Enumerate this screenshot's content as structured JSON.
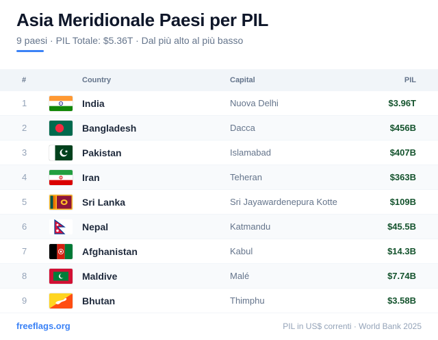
{
  "header": {
    "title": "Asia Meridionale Paesi per PIL",
    "subtitle": "9 paesi · PIL Totale: $5.36T · Dal più alto al più basso"
  },
  "table": {
    "columns": {
      "rank": "#",
      "country": "Country",
      "capital": "Capital",
      "gdp": "PIL"
    },
    "rows": [
      {
        "rank": "1",
        "flag": "india-flag-icon",
        "country": "India",
        "capital": "Nuova Delhi",
        "gdp": "$3.96T"
      },
      {
        "rank": "2",
        "flag": "bangladesh-flag-icon",
        "country": "Bangladesh",
        "capital": "Dacca",
        "gdp": "$456B"
      },
      {
        "rank": "3",
        "flag": "pakistan-flag-icon",
        "country": "Pakistan",
        "capital": "Islamabad",
        "gdp": "$407B"
      },
      {
        "rank": "4",
        "flag": "iran-flag-icon",
        "country": "Iran",
        "capital": "Teheran",
        "gdp": "$363B"
      },
      {
        "rank": "5",
        "flag": "sri-lanka-flag-icon",
        "country": "Sri Lanka",
        "capital": "Sri Jayawardenepura Kotte",
        "gdp": "$109B"
      },
      {
        "rank": "6",
        "flag": "nepal-flag-icon",
        "country": "Nepal",
        "capital": "Katmandu",
        "gdp": "$45.5B"
      },
      {
        "rank": "7",
        "flag": "afghanistan-flag-icon",
        "country": "Afghanistan",
        "capital": "Kabul",
        "gdp": "$14.3B"
      },
      {
        "rank": "8",
        "flag": "maldives-flag-icon",
        "country": "Maldive",
        "capital": "Malé",
        "gdp": "$7.74B"
      },
      {
        "rank": "9",
        "flag": "bhutan-flag-icon",
        "country": "Bhutan",
        "capital": "Thimphu",
        "gdp": "$3.58B"
      }
    ]
  },
  "footer": {
    "site": "freeflags.org",
    "source": "PIL in US$ correnti · World Bank 2025"
  },
  "colors": {
    "accent": "#3b82f6",
    "gdp_text": "#14532d",
    "header_bg": "#f1f5f9"
  }
}
